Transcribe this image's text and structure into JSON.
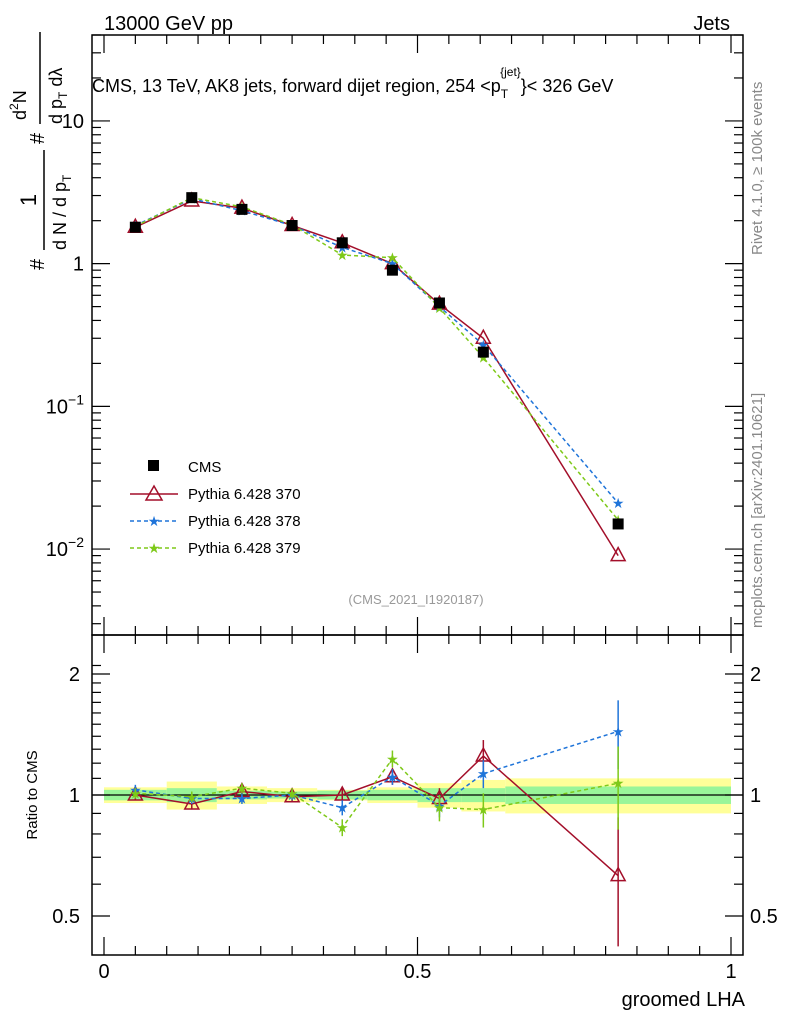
{
  "header": {
    "left": "13000 GeV pp",
    "right": "Jets"
  },
  "title": {
    "text": "CMS, 13 TeV, AK8 jets, forward dijet region, 254 <p",
    "sub": "T",
    "sup": "{jet}",
    "tail": "}< 326 GeV"
  },
  "ylabel_main": {
    "hash1": "#",
    "one": "1",
    "den": "d N / d p",
    "den_sub": "T",
    "hash2": "#",
    "num": "d",
    "num_sup": "2",
    "num_tail": "N",
    "den2": "d p",
    "den2_sub": "T",
    "den2_tail": " dλ"
  },
  "side_labels": {
    "rivet": "Rivet 4.1.0, ≥ 100k events",
    "mcplots": "mcplots.cern.ch [arXiv:2401.10621]"
  },
  "watermark": "(CMS_2021_I1920187)",
  "xlabel": "groomed LHA",
  "ratio_ylabel": "Ratio to CMS",
  "main_yticks": [
    {
      "v": 10,
      "base": "10",
      "exp": ""
    },
    {
      "v": 1,
      "base": "1",
      "exp": ""
    },
    {
      "v": 0.1,
      "base": "10",
      "exp": "−1"
    },
    {
      "v": 0.01,
      "base": "10",
      "exp": "−2"
    }
  ],
  "ratio_yticks": [
    {
      "v": 2,
      "label": "2"
    },
    {
      "v": 1,
      "label": "1"
    },
    {
      "v": 0.5,
      "label": "0.5"
    }
  ],
  "xticks": [
    {
      "v": 0,
      "label": "0"
    },
    {
      "v": 0.5,
      "label": "0.5"
    },
    {
      "v": 1,
      "label": "1"
    }
  ],
  "legend": [
    "CMS",
    "Pythia 6.428 370",
    "Pythia 6.428 378",
    "Pythia 6.428 379"
  ],
  "colors": {
    "cms": "#000000",
    "p370": "#a30f2a",
    "p378": "#1f74d9",
    "p379": "#7ec919",
    "band_yellow": "#ffff99",
    "band_green": "#99f599"
  },
  "chart_data": {
    "type": "line",
    "xlim": [
      0,
      1
    ],
    "ylim_main": [
      0.0025,
      40
    ],
    "ylim_ratio": [
      0.4,
      2.3
    ],
    "x": [
      0.05,
      0.14,
      0.22,
      0.3,
      0.38,
      0.46,
      0.535,
      0.605,
      0.82
    ],
    "bin_edges": [
      0.0,
      0.1,
      0.18,
      0.26,
      0.34,
      0.42,
      0.5,
      0.57,
      0.64,
      1.0
    ],
    "cms": {
      "name": "CMS",
      "values": [
        1.8,
        2.9,
        2.4,
        1.85,
        1.4,
        0.9,
        0.53,
        0.24,
        0.015
      ],
      "ratio_band_stat": [
        0.03,
        0.04,
        0.025,
        0.02,
        0.025,
        0.03,
        0.04,
        0.04,
        0.05
      ],
      "ratio_band_total": [
        0.045,
        0.08,
        0.05,
        0.04,
        0.03,
        0.045,
        0.07,
        0.09,
        0.1
      ]
    },
    "series": [
      {
        "name": "Pythia 6.428 370",
        "values": [
          1.8,
          2.75,
          2.45,
          1.85,
          1.4,
          1.0,
          0.52,
          0.3,
          0.009
        ],
        "ratio": [
          1.0,
          0.95,
          1.02,
          0.99,
          1.0,
          1.11,
          0.98,
          1.25,
          0.63
        ],
        "ratio_err": [
          0.03,
          0.03,
          0.03,
          0.03,
          0.04,
          0.05,
          0.06,
          0.12,
          0.25
        ]
      },
      {
        "name": "Pythia 6.428 378",
        "values": [
          1.85,
          2.85,
          2.35,
          1.85,
          1.3,
          1.0,
          0.5,
          0.27,
          0.021
        ],
        "ratio": [
          1.03,
          0.98,
          0.98,
          1.0,
          0.93,
          1.11,
          0.94,
          1.13,
          1.44
        ],
        "ratio_err": [
          0.03,
          0.03,
          0.03,
          0.03,
          0.04,
          0.05,
          0.06,
          0.09,
          0.28
        ]
      },
      {
        "name": "Pythia 6.428 379",
        "values": [
          1.82,
          2.9,
          2.5,
          1.87,
          1.15,
          1.1,
          0.49,
          0.22,
          0.016
        ],
        "ratio": [
          1.01,
          0.99,
          1.04,
          1.01,
          0.83,
          1.23,
          0.93,
          0.92,
          1.07
        ],
        "ratio_err": [
          0.03,
          0.03,
          0.03,
          0.03,
          0.04,
          0.06,
          0.07,
          0.09,
          0.25
        ]
      }
    ]
  }
}
